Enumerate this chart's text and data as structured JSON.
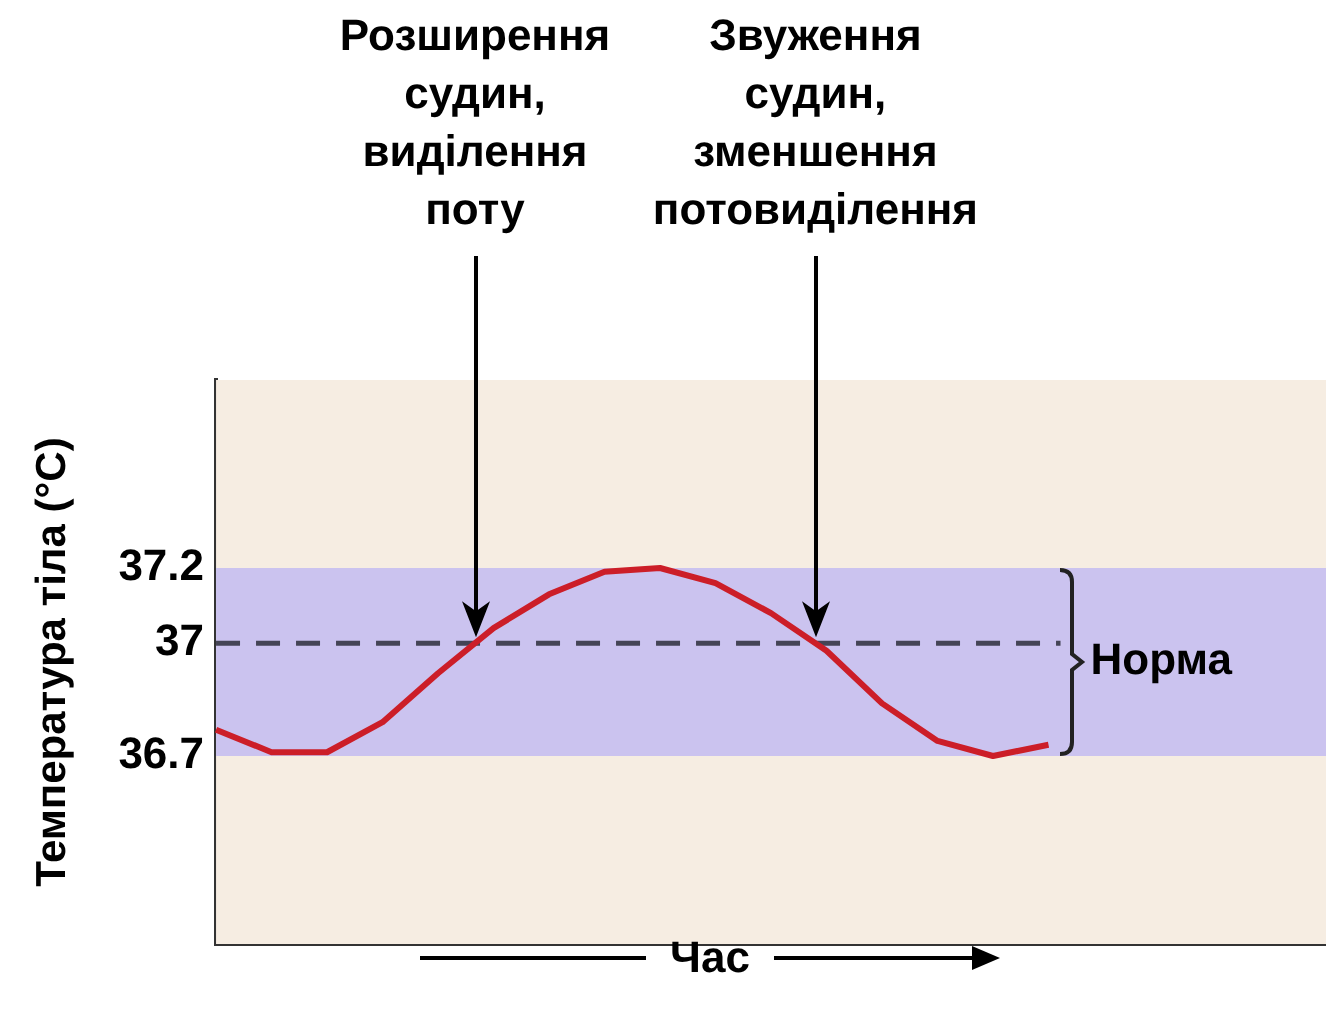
{
  "chart_data": {
    "type": "line",
    "ylabel": "Температура тіла (°C)",
    "xlabel": "Час",
    "categories": [
      null,
      null,
      null,
      null,
      null,
      null,
      null,
      null,
      null,
      null,
      null,
      null,
      null,
      null,
      null,
      null,
      null,
      null,
      null,
      null,
      null
    ],
    "series": [
      {
        "color": "#cc1e28",
        "values": [
          36.77,
          36.71,
          36.71,
          36.79,
          36.92,
          37.04,
          37.13,
          37.19,
          37.2,
          37.16,
          37.08,
          36.98,
          36.84,
          36.74,
          36.7,
          36.73,
          null,
          null,
          null,
          null,
          null
        ]
      }
    ],
    "ylim": [
      36.2,
      37.7
    ],
    "yticks": [
      36.7,
      37,
      37.2
    ],
    "tick_labels": "y",
    "legend": false,
    "marker": "none",
    "line_style": "solid",
    "ref_lines": [
      {
        "axis": "y",
        "value": 37,
        "color": "#444455",
        "line_style": "dashed"
      }
    ],
    "bands": [
      {
        "axis": "y",
        "from": 36.7,
        "to": 37.2,
        "label": "Норма",
        "color": "#cbc3ef"
      }
    ],
    "annotations": [
      "Розширення судин, виділення поту",
      "Звуження судин, зменшення потовиділення"
    ]
  }
}
